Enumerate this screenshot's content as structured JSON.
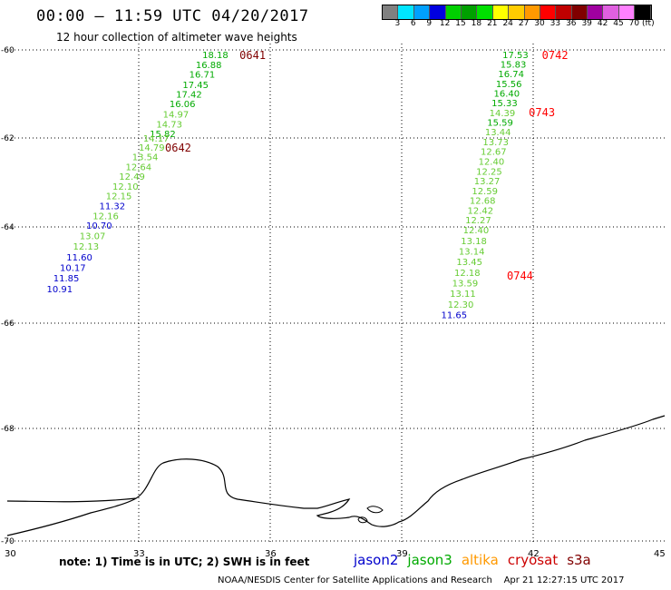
{
  "header": {
    "title": "00:00 – 11:59 UTC 04/20/2017",
    "subtitle": "12 hour collection of altimeter wave heights"
  },
  "scale": {
    "colors": [
      "#808080",
      "#00e5ff",
      "#00a0ff",
      "#0000e0",
      "#00d000",
      "#00a000",
      "#00e000",
      "#ffff00",
      "#ffcc00",
      "#ff9900",
      "#ff0000",
      "#c00000",
      "#800000",
      "#a000a0",
      "#e060e0",
      "#ff80ff",
      "#000000"
    ],
    "labels": [
      "3",
      "6",
      "9",
      "12",
      "15",
      "18",
      "21",
      "24",
      "27",
      "30",
      "33",
      "36",
      "39",
      "42",
      "45",
      "70",
      "(ft)"
    ]
  },
  "axes": {
    "lat_labels": [
      "-60",
      "-62",
      "-64",
      "-66",
      "-68",
      "-70"
    ],
    "lon_labels": [
      "30",
      "33",
      "36",
      "39",
      "42",
      "45"
    ]
  },
  "track_colors": {
    "blue": "#0000cc",
    "light_green": "#66cc33",
    "dark_green": "#00aa00",
    "dark_red": "#800000",
    "red": "#ff0000"
  },
  "tracks": [
    {
      "times": [
        {
          "label": "0641",
          "color": "dark_red",
          "lat": -60.1,
          "lon": 35.3
        },
        {
          "label": "0642",
          "color": "dark_red",
          "lat": -62.2,
          "lon": 33.6
        }
      ],
      "points": [
        {
          "v": "18.18",
          "c": "dark_green",
          "lat": -60.1,
          "lon": 34.45
        },
        {
          "v": "16.88",
          "c": "dark_green",
          "lat": -60.33,
          "lon": 34.3
        },
        {
          "v": "16.71",
          "c": "dark_green",
          "lat": -60.55,
          "lon": 34.15
        },
        {
          "v": "17.45",
          "c": "dark_green",
          "lat": -60.78,
          "lon": 34.0
        },
        {
          "v": "17.42",
          "c": "dark_green",
          "lat": -61.0,
          "lon": 33.85
        },
        {
          "v": "16.06",
          "c": "dark_green",
          "lat": -61.22,
          "lon": 33.7
        },
        {
          "v": "14.97",
          "c": "light_green",
          "lat": -61.45,
          "lon": 33.55
        },
        {
          "v": "14.73",
          "c": "light_green",
          "lat": -61.68,
          "lon": 33.4
        },
        {
          "v": "15.82",
          "c": "dark_green",
          "lat": -61.9,
          "lon": 33.25
        },
        {
          "v": "14.17",
          "c": "light_green",
          "lat": -62.0,
          "lon": 33.1
        },
        {
          "v": "14.79",
          "c": "light_green",
          "lat": -62.2,
          "lon": 33.0
        },
        {
          "v": "13.54",
          "c": "light_green",
          "lat": -62.42,
          "lon": 32.85
        },
        {
          "v": "12.64",
          "c": "light_green",
          "lat": -62.64,
          "lon": 32.7
        },
        {
          "v": "12.49",
          "c": "light_green",
          "lat": -62.86,
          "lon": 32.55
        },
        {
          "v": "12.10",
          "c": "light_green",
          "lat": -63.08,
          "lon": 32.4
        },
        {
          "v": "12.15",
          "c": "light_green",
          "lat": -63.3,
          "lon": 32.25
        },
        {
          "v": "11.32",
          "c": "blue",
          "lat": -63.52,
          "lon": 32.1
        },
        {
          "v": "12.16",
          "c": "light_green",
          "lat": -63.74,
          "lon": 31.95
        },
        {
          "v": "10.70",
          "c": "blue",
          "lat": -63.96,
          "lon": 31.8
        },
        {
          "v": "13.07",
          "c": "light_green",
          "lat": -64.18,
          "lon": 31.65
        },
        {
          "v": "12.13",
          "c": "light_green",
          "lat": -64.4,
          "lon": 31.5
        },
        {
          "v": "11.60",
          "c": "blue",
          "lat": -64.62,
          "lon": 31.35
        },
        {
          "v": "10.17",
          "c": "blue",
          "lat": -64.84,
          "lon": 31.2
        },
        {
          "v": "11.85",
          "c": "blue",
          "lat": -65.06,
          "lon": 31.05
        },
        {
          "v": "10.91",
          "c": "blue",
          "lat": -65.28,
          "lon": 30.9
        }
      ]
    },
    {
      "times": [
        {
          "label": "0742",
          "color": "red",
          "lat": -60.1,
          "lon": 42.2
        },
        {
          "label": "0743",
          "color": "red",
          "lat": -61.4,
          "lon": 41.9
        },
        {
          "label": "0744",
          "color": "red",
          "lat": -65.0,
          "lon": 41.4
        }
      ],
      "points": [
        {
          "v": "17.53",
          "c": "dark_green",
          "lat": -60.1,
          "lon": 41.3
        },
        {
          "v": "15.83",
          "c": "dark_green",
          "lat": -60.32,
          "lon": 41.25
        },
        {
          "v": "16.74",
          "c": "dark_green",
          "lat": -60.54,
          "lon": 41.2
        },
        {
          "v": "15.56",
          "c": "dark_green",
          "lat": -60.76,
          "lon": 41.15
        },
        {
          "v": "16.40",
          "c": "dark_green",
          "lat": -60.98,
          "lon": 41.1
        },
        {
          "v": "15.33",
          "c": "dark_green",
          "lat": -61.2,
          "lon": 41.05
        },
        {
          "v": "14.39",
          "c": "light_green",
          "lat": -61.42,
          "lon": 41.0
        },
        {
          "v": "15.59",
          "c": "dark_green",
          "lat": -61.64,
          "lon": 40.95
        },
        {
          "v": "13.44",
          "c": "light_green",
          "lat": -61.86,
          "lon": 40.9
        },
        {
          "v": "13.73",
          "c": "light_green",
          "lat": -62.08,
          "lon": 40.85
        },
        {
          "v": "12.67",
          "c": "light_green",
          "lat": -62.3,
          "lon": 40.8
        },
        {
          "v": "12.40",
          "c": "light_green",
          "lat": -62.52,
          "lon": 40.75
        },
        {
          "v": "12.25",
          "c": "light_green",
          "lat": -62.74,
          "lon": 40.7
        },
        {
          "v": "13.27",
          "c": "light_green",
          "lat": -62.96,
          "lon": 40.65
        },
        {
          "v": "12.59",
          "c": "light_green",
          "lat": -63.18,
          "lon": 40.6
        },
        {
          "v": "12.68",
          "c": "light_green",
          "lat": -63.4,
          "lon": 40.55
        },
        {
          "v": "12.42",
          "c": "light_green",
          "lat": -63.62,
          "lon": 40.5
        },
        {
          "v": "12.27",
          "c": "light_green",
          "lat": -63.84,
          "lon": 40.45
        },
        {
          "v": "12.40",
          "c": "light_green",
          "lat": -64.06,
          "lon": 40.4
        },
        {
          "v": "13.18",
          "c": "light_green",
          "lat": -64.28,
          "lon": 40.35
        },
        {
          "v": "13.14",
          "c": "light_green",
          "lat": -64.5,
          "lon": 40.3
        },
        {
          "v": "13.45",
          "c": "light_green",
          "lat": -64.72,
          "lon": 40.25
        },
        {
          "v": "12.18",
          "c": "light_green",
          "lat": -64.94,
          "lon": 40.2
        },
        {
          "v": "13.59",
          "c": "light_green",
          "lat": -65.16,
          "lon": 40.15
        },
        {
          "v": "13.11",
          "c": "light_green",
          "lat": -65.38,
          "lon": 40.1
        },
        {
          "v": "12.30",
          "c": "light_green",
          "lat": -65.6,
          "lon": 40.05
        },
        {
          "v": "11.65",
          "c": "blue",
          "lat": -65.82,
          "lon": 39.9
        }
      ]
    }
  ],
  "note": "note: 1) Time is in UTC; 2) SWH is in feet",
  "legend": [
    {
      "name": "jason2",
      "color": "#0000cc"
    },
    {
      "name": "jason3",
      "color": "#00aa00"
    },
    {
      "name": "altika",
      "color": "#ff9900"
    },
    {
      "name": "cryosat",
      "color": "#cc0000"
    },
    {
      "name": "s3a",
      "color": "#800000"
    }
  ],
  "footer": "NOAA/NESDIS Center for Satellite Applications and Research    Apr 21 12:27:15 UTC 2017"
}
